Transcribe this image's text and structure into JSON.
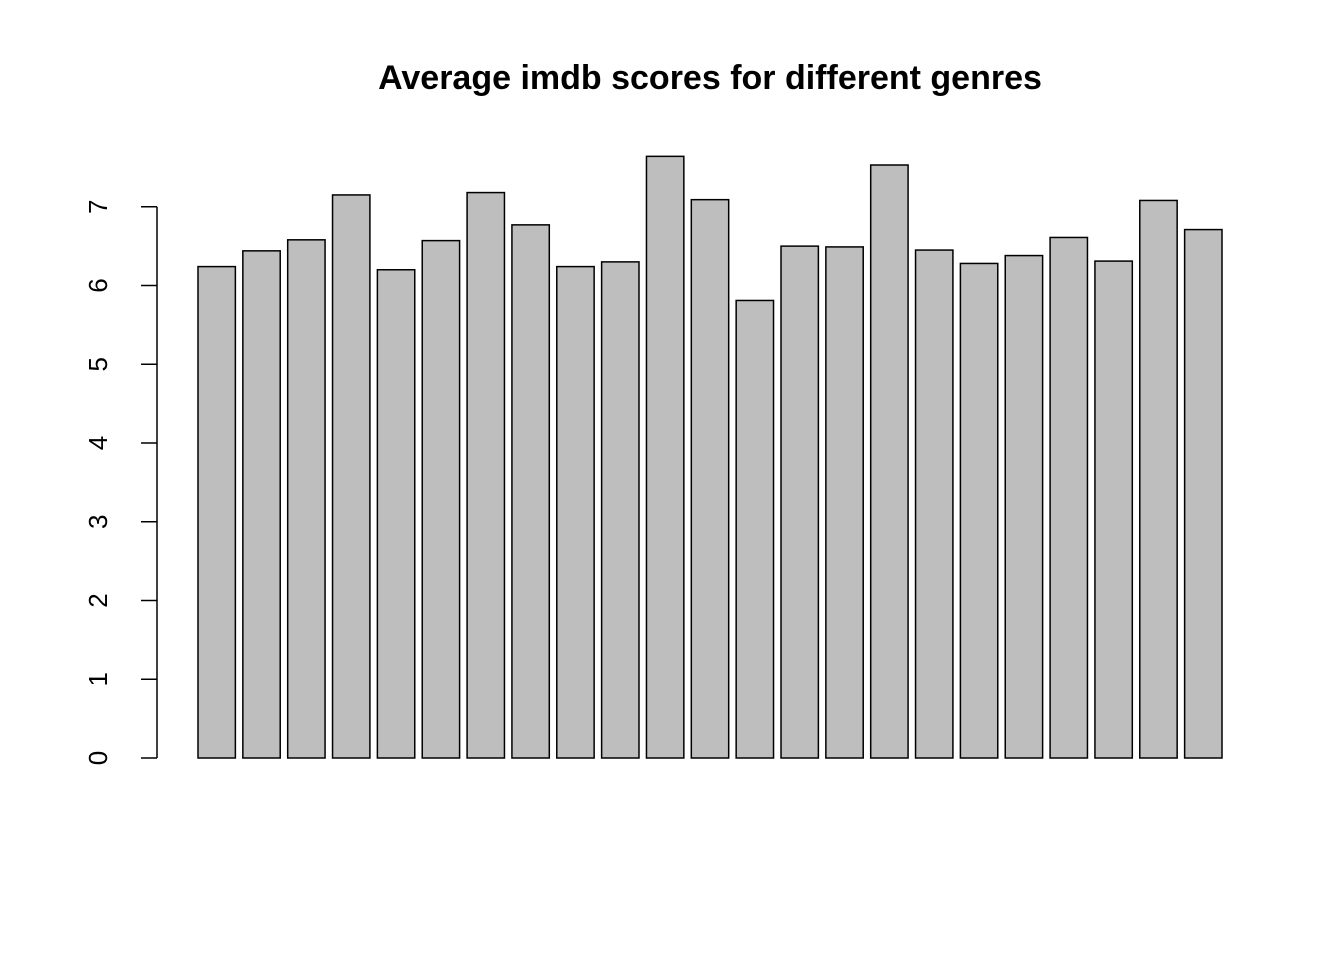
{
  "chart_data": {
    "type": "bar",
    "title": "Average imdb scores for different genres",
    "categories": [
      null,
      null,
      null,
      null,
      null,
      null,
      null,
      null,
      null,
      null,
      null,
      null,
      null,
      null,
      null,
      null,
      null,
      null,
      null,
      null,
      null,
      null,
      null
    ],
    "values": [
      6.24,
      6.44,
      6.58,
      7.15,
      6.2,
      6.57,
      7.18,
      6.77,
      6.24,
      6.3,
      7.64,
      7.09,
      5.81,
      6.5,
      6.49,
      7.53,
      6.45,
      6.28,
      6.38,
      6.61,
      6.31,
      7.08,
      6.71
    ],
    "color": "#bebebe",
    "ylim": [
      0,
      8
    ],
    "yticks": [
      0,
      1,
      2,
      3,
      4,
      5,
      6,
      7
    ],
    "grid": false
  }
}
